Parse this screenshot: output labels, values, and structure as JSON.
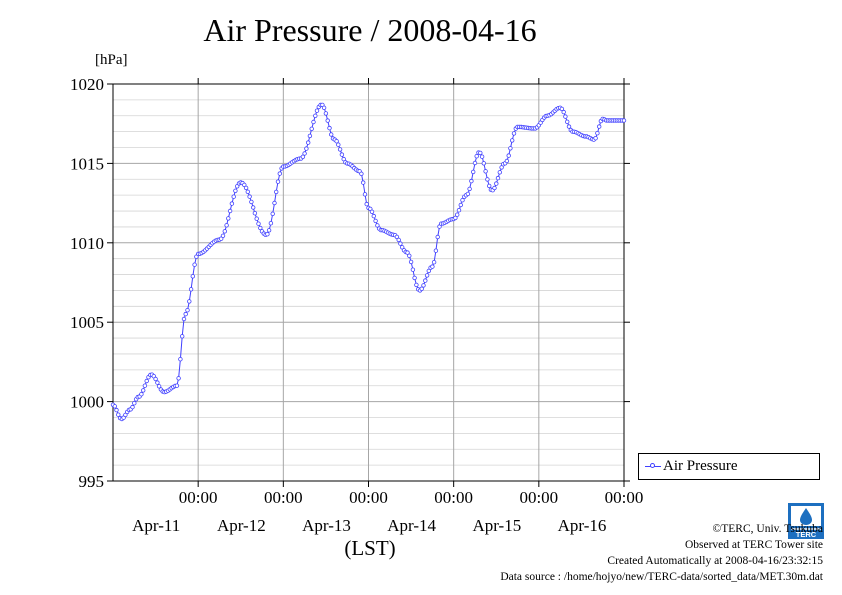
{
  "chart_data": {
    "type": "line",
    "title": "Air Pressure / 2008-04-16",
    "ylabel": "[hPa]",
    "xlabel": "(LST)",
    "ylim": [
      995,
      1020
    ],
    "yticks": [
      995,
      1000,
      1005,
      1010,
      1015,
      1020
    ],
    "ytick_labels": [
      "995",
      "1000",
      "1005",
      "1010",
      "1015",
      "1020"
    ],
    "x_tick_labels": [
      {
        "time": "00:00",
        "date": "Apr-11",
        "day": 1
      },
      {
        "time": "00:00",
        "date": "Apr-12",
        "day": 2
      },
      {
        "time": "00:00",
        "date": "Apr-13",
        "day": 3
      },
      {
        "time": "00:00",
        "date": "Apr-14",
        "day": 4
      },
      {
        "time": "00:00",
        "date": "Apr-15",
        "day": 5
      },
      {
        "time": "00:00",
        "date": "Apr-16",
        "day": 6
      }
    ],
    "xlim_days": [
      0,
      6
    ],
    "grid": true,
    "legend_position": "right",
    "series": [
      {
        "name": "Air Pressure",
        "color": "#4040ff",
        "x_days": [
          0.0,
          0.1,
          0.2,
          0.3,
          0.45,
          0.6,
          0.75,
          0.85,
          1.0,
          1.25,
          1.5,
          1.8,
          2.0,
          2.2,
          2.45,
          2.6,
          2.75,
          2.9,
          3.0,
          3.15,
          3.3,
          3.45,
          3.6,
          3.75,
          3.85,
          4.0,
          4.15,
          4.3,
          4.45,
          4.6,
          4.75,
          4.95,
          5.1,
          5.25,
          5.4,
          5.55,
          5.65,
          5.75,
          5.8,
          6.0
        ],
        "y": [
          999.8,
          998.9,
          999.5,
          1000.3,
          1001.7,
          1000.6,
          1001.0,
          1005.5,
          1009.3,
          1010.2,
          1013.8,
          1010.5,
          1014.8,
          1015.3,
          1018.7,
          1016.5,
          1015.0,
          1014.5,
          1012.2,
          1010.8,
          1010.5,
          1009.4,
          1007.0,
          1008.5,
          1011.2,
          1011.5,
          1013.0,
          1015.7,
          1013.3,
          1015.0,
          1017.3,
          1017.2,
          1018.0,
          1018.5,
          1017.0,
          1016.7,
          1016.5,
          1017.8,
          1017.7,
          1017.7
        ]
      }
    ]
  },
  "legend": {
    "label": "Air Pressure"
  },
  "credits": {
    "line1": "©TERC, Univ. Tsukuba",
    "line2": "Observed at TERC Tower site",
    "line3": "Created Automatically at 2008-04-16/23:32:15",
    "line4": "Data source : /home/hojyo/new/TERC-data/sorted_data/MET.30m.dat"
  },
  "logo": {
    "text": "TERC"
  }
}
